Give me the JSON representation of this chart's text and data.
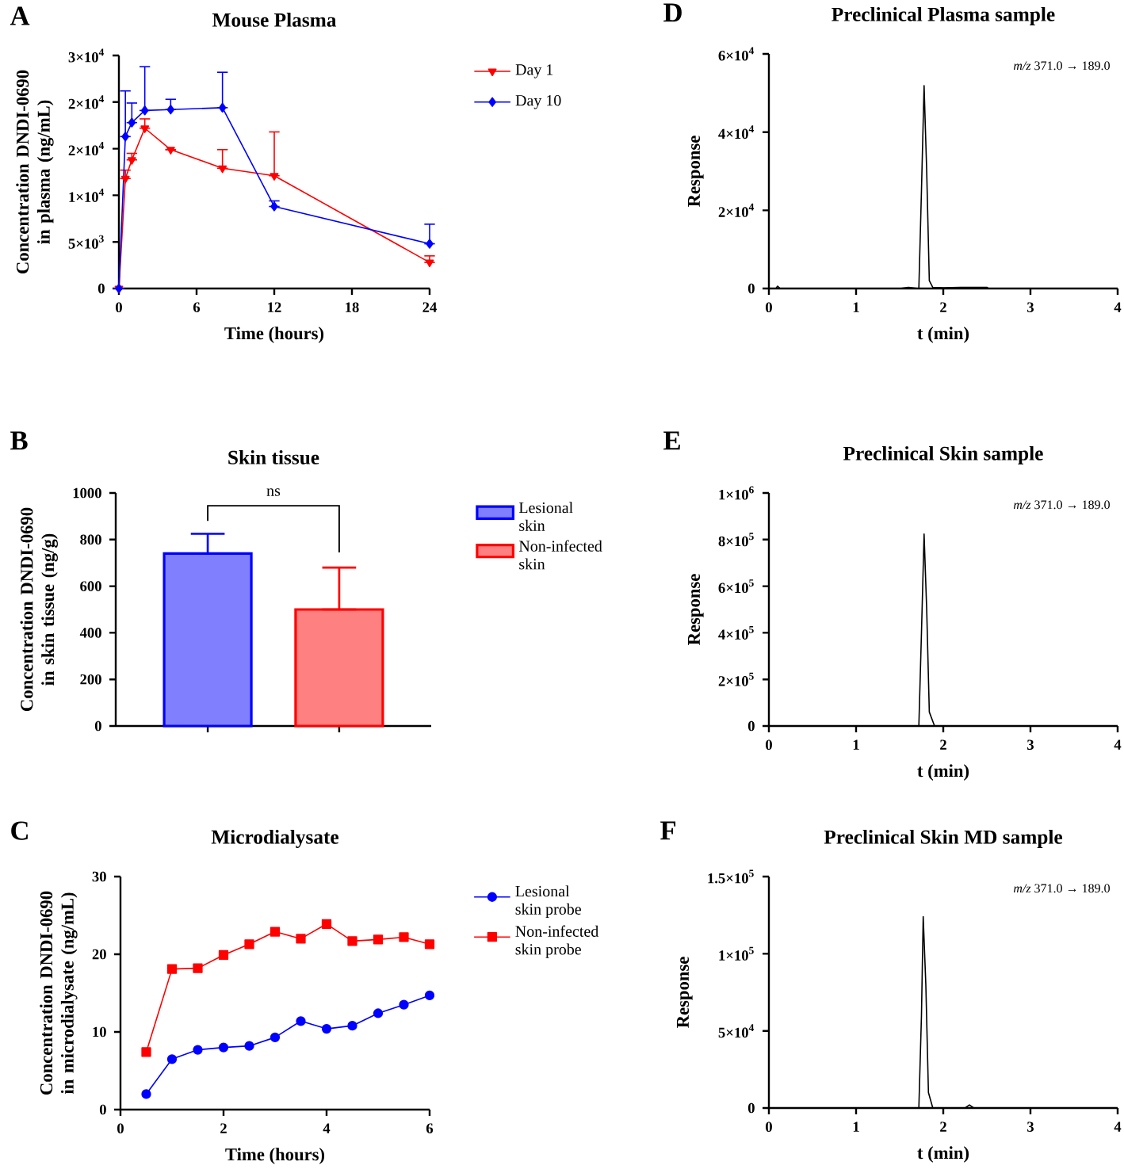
{
  "chart_data": [
    {
      "type": "line",
      "title": "Mouse Plasma",
      "xlabel": "Time (hours)",
      "ylabel": "Concentration DNDI-0690 in plasma (ng/mL)",
      "x": [
        0,
        0.5,
        1,
        2,
        4,
        8,
        12,
        24
      ],
      "xlim": [
        0,
        24
      ],
      "xticks": [
        0,
        6,
        12,
        18,
        24
      ],
      "ylim": [
        0,
        25000
      ],
      "yticks": [
        0,
        {
          "value": 5000,
          "label": "5×10$^{3}$"
        },
        {
          "value": 10000,
          "label": "1×10$^{4}$"
        },
        {
          "value": 15000,
          "label": "2×10$^{4}$"
        },
        {
          "value": 20000,
          "label": "2×10$^{4}$"
        },
        {
          "value": 25000,
          "label": "3×10$^{4}$"
        }
      ],
      "legend": "right",
      "annotations": [
        "A"
      ],
      "series": [
        {
          "name": "Day 1",
          "color": "#ff0000",
          "marker": "triangle",
          "values": [
            0,
            11800,
            13800,
            17200,
            14900,
            12900,
            12100,
            2800
          ],
          "errors": [
            null,
            [
              11800,
              12700
            ],
            [
              13800,
              14500
            ],
            [
              17200,
              18200
            ],
            null,
            [
              12900,
              14900
            ],
            [
              12100,
              16800
            ],
            [
              2800,
              3500
            ]
          ]
        },
        {
          "name": "Day 10",
          "color": "#0000ff",
          "marker": "diamond",
          "values": [
            0,
            16300,
            17800,
            19100,
            19200,
            19400,
            8800,
            4800
          ],
          "errors": [
            null,
            [
              16300,
              21200
            ],
            [
              17800,
              19900
            ],
            [
              19100,
              23800
            ],
            [
              19200,
              20300
            ],
            [
              19400,
              23200
            ],
            [
              8800,
              9400
            ],
            [
              4800,
              6900
            ]
          ]
        }
      ]
    },
    {
      "type": "bar",
      "title": "Skin tissue",
      "ylabel": "Concentration DNDI-0690 in skin tissue (ng/g)",
      "categories": [
        null,
        null
      ],
      "ylim": [
        0,
        1000
      ],
      "yticks": [
        0,
        200,
        400,
        600,
        800,
        1000
      ],
      "legend": "right",
      "annotations": [
        "B",
        "ns"
      ],
      "series": [
        {
          "name": "Lesional skin",
          "color": "#0000ff",
          "values": [
            740,
            null
          ],
          "errors": [
            [
              740,
              825
            ],
            null
          ]
        },
        {
          "name": "Non-infected skin",
          "color": "#ff0000",
          "values": [
            null,
            500
          ],
          "errors": [
            null,
            [
              500,
              680
            ]
          ]
        }
      ]
    },
    {
      "type": "line",
      "title": "Microdialysate",
      "xlabel": "Time (hours)",
      "ylabel": "Concentration DNDI-0690 in microdialysate (ng/mL)",
      "x": [
        0.5,
        1,
        1.5,
        2,
        2.5,
        3,
        3.5,
        4,
        4.5,
        5,
        5.5,
        6
      ],
      "xlim": [
        0,
        6
      ],
      "xticks": [
        0,
        2,
        4,
        6
      ],
      "ylim": [
        0,
        30
      ],
      "yticks": [
        0,
        10,
        20,
        30
      ],
      "legend": "right",
      "annotations": [
        "C"
      ],
      "series": [
        {
          "name": "Lesional skin probe",
          "color": "#0000ff",
          "marker": "circle",
          "values": [
            2.0,
            6.5,
            7.7,
            8.0,
            8.2,
            9.3,
            11.4,
            10.4,
            10.8,
            12.4,
            13.5,
            14.7
          ]
        },
        {
          "name": "Non-infected skin probe",
          "color": "#ff0000",
          "marker": "square",
          "values": [
            7.4,
            18.1,
            18.2,
            19.9,
            21.3,
            22.9,
            22.0,
            23.9,
            21.7,
            21.9,
            22.2,
            21.3
          ]
        }
      ]
    },
    {
      "type": "line",
      "title": "Preclinical Plasma sample",
      "xlabel": "t (min)",
      "ylabel": "Response",
      "xlim": [
        0,
        4
      ],
      "xticks": [
        0,
        1,
        2,
        3,
        4
      ],
      "ylim": [
        0,
        60000
      ],
      "yticks": [
        0,
        {
          "value": 20000,
          "label": "2×10$^{4}$"
        },
        {
          "value": 40000,
          "label": "4×10$^{4}$"
        },
        {
          "value": 60000,
          "label": "6×10$^{4}$"
        }
      ],
      "annotations": [
        "D",
        "*m/z* 371.0 → 189.0"
      ],
      "series": [
        {
          "color": "#000000",
          "x": [
            0,
            0.08,
            0.1,
            0.13,
            0.3,
            1.5,
            1.6,
            1.72,
            1.75,
            1.78,
            1.81,
            1.84,
            1.88,
            2.0,
            2.2,
            2.5,
            2.52,
            4
          ],
          "values": [
            0,
            0,
            600,
            0,
            0,
            0,
            300,
            0,
            25000,
            51900,
            30000,
            2000,
            300,
            200,
            300,
            300,
            0,
            0
          ]
        }
      ]
    },
    {
      "type": "line",
      "title": "Preclinical Skin sample",
      "xlabel": "t (min)",
      "ylabel": "Response",
      "xlim": [
        0,
        4
      ],
      "xticks": [
        0,
        1,
        2,
        3,
        4
      ],
      "ylim": [
        0,
        1000000
      ],
      "yticks": [
        0,
        {
          "value": 200000,
          "label": "2×10$^{5}$"
        },
        {
          "value": 400000,
          "label": "4×10$^{5}$"
        },
        {
          "value": 600000,
          "label": "6×10$^{5}$"
        },
        {
          "value": 800000,
          "label": "8×10$^{5}$"
        },
        {
          "value": 1000000,
          "label": "1×10$^{6}$"
        }
      ],
      "annotations": [
        "E",
        "*m/z* 371.0 → 189.0"
      ],
      "series": [
        {
          "color": "#000000",
          "x": [
            0,
            1.72,
            1.75,
            1.78,
            1.81,
            1.84,
            1.9,
            4
          ],
          "values": [
            0,
            0,
            400000,
            824000,
            500000,
            60000,
            0,
            0
          ]
        }
      ]
    },
    {
      "type": "line",
      "title": "Preclinical Skin MD sample",
      "xlabel": "t (min)",
      "ylabel": "Response",
      "xlim": [
        0,
        4
      ],
      "xticks": [
        0,
        1,
        2,
        3,
        4
      ],
      "ylim": [
        0,
        150000
      ],
      "yticks": [
        0,
        {
          "value": 50000,
          "label": "5×10$^{4}$"
        },
        {
          "value": 100000,
          "label": "1×10$^{5}$"
        },
        {
          "value": 150000,
          "label": "1.5×10$^{5}$"
        }
      ],
      "annotations": [
        "F",
        "*m/z* 371.0 → 189.0"
      ],
      "series": [
        {
          "color": "#000000",
          "x": [
            0,
            1.72,
            1.75,
            1.77,
            1.8,
            1.83,
            1.88,
            2.25,
            2.3,
            2.35,
            4
          ],
          "values": [
            0,
            0,
            60000,
            124000,
            80000,
            10000,
            0,
            0,
            2000,
            0,
            0
          ]
        }
      ]
    }
  ]
}
